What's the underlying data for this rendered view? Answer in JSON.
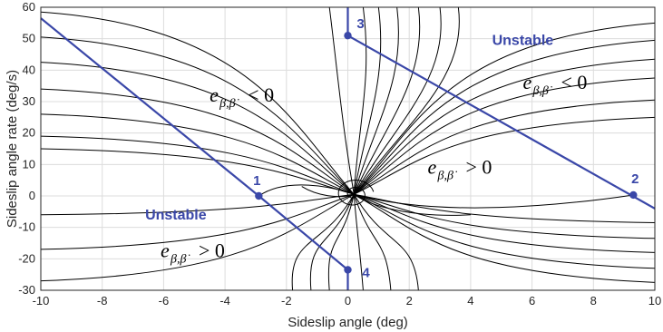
{
  "chart_data": {
    "type": "line",
    "subtype": "phase-portrait",
    "xlabel": "Sideslip angle (deg)",
    "ylabel": "Sideslip angle rate (deg/s)",
    "xlim": [
      -10,
      10
    ],
    "ylim": [
      -30,
      60
    ],
    "xticks": [
      -10,
      -8,
      -6,
      -4,
      -2,
      0,
      2,
      4,
      6,
      8,
      10
    ],
    "yticks": [
      -30,
      -20,
      -10,
      0,
      10,
      20,
      30,
      40,
      50,
      60
    ],
    "grid": true,
    "colors": {
      "boundary": "#3a47a8",
      "trajectory": "#000000",
      "grid": "#dcdcdc"
    },
    "equilibrium": {
      "x": 0.2,
      "y": 0.5
    },
    "stability_boundaries": [
      {
        "name": "boundary-left",
        "points": [
          [
            -10,
            56.5
          ],
          [
            -2.9,
            0
          ],
          [
            0,
            -23.5
          ]
        ]
      },
      {
        "name": "boundary-right",
        "points": [
          [
            0,
            51
          ],
          [
            10,
            -4
          ]
        ]
      },
      {
        "name": "boundary-top-stub",
        "points": [
          [
            0,
            60
          ],
          [
            0,
            51
          ]
        ]
      },
      {
        "name": "boundary-bottom-stub",
        "points": [
          [
            0,
            -23.5
          ],
          [
            0,
            -30
          ]
        ]
      }
    ],
    "key_points": [
      {
        "id": "p1",
        "label": "1",
        "x": -2.9,
        "y": 0
      },
      {
        "id": "p2",
        "label": "2",
        "x": 9.3,
        "y": 0.3
      },
      {
        "id": "p3",
        "label": "3",
        "x": 0,
        "y": 51
      },
      {
        "id": "p4",
        "label": "4",
        "x": 0,
        "y": -23.5
      }
    ],
    "annotations": [
      {
        "id": "unstable-right",
        "text": "Unstable",
        "x": 4.7,
        "y": 48
      },
      {
        "id": "unstable-left",
        "text": "Unstable",
        "x": -6.6,
        "y": -7.5
      }
    ],
    "math_annotations": [
      {
        "id": "e-neg-center",
        "base": "e",
        "sub": "β,β̇",
        "rel": "< 0",
        "x": -4.5,
        "y": 30
      },
      {
        "id": "e-neg-right",
        "base": "e",
        "sub": "β,β̇",
        "rel": "< 0",
        "x": 5.7,
        "y": 34
      },
      {
        "id": "e-pos-center",
        "base": "e",
        "sub": "β,β̇",
        "rel": "> 0",
        "x": 2.6,
        "y": 7
      },
      {
        "id": "e-pos-left",
        "base": "e",
        "sub": "β,β̇",
        "rel": "> 0",
        "x": -6.1,
        "y": -19.5
      }
    ],
    "trajectories_left": [
      {
        "y": 58.5
      },
      {
        "y": 50.5
      },
      {
        "y": 42.5
      },
      {
        "y": 34.0
      },
      {
        "y": 26.0
      },
      {
        "y": 19.0
      },
      {
        "y": 15.0
      },
      {
        "y": -6.0
      },
      {
        "y": -17.0
      },
      {
        "y": -27.0
      }
    ],
    "trajectories_right": [
      {
        "y": 55.0
      },
      {
        "y": 49.5
      },
      {
        "y": 43.5
      },
      {
        "y": 37.5
      },
      {
        "y": 30.5
      },
      {
        "y": 25.0
      },
      {
        "y": -8.5
      },
      {
        "y": -13.5
      },
      {
        "y": -18.0
      },
      {
        "y": -23.0
      },
      {
        "y": -27.5
      }
    ],
    "trajectories_top": [
      {
        "x": -0.6
      },
      {
        "x": 0.5
      },
      {
        "x": 1.0
      },
      {
        "x": 1.6
      },
      {
        "x": 2.3
      },
      {
        "x": 3.0
      },
      {
        "x": 3.6
      }
    ],
    "trajectories_bottom": [
      {
        "x": -1.8
      },
      {
        "x": -1.2
      },
      {
        "x": -0.6
      },
      {
        "x": 0.5
      },
      {
        "x": 1.4
      },
      {
        "x": 2.3
      }
    ],
    "spiral_curves": [
      {
        "from": [
          -2.9,
          0
        ],
        "cp1": [
          -2,
          6
        ],
        "cp2": [
          -0.5,
          3
        ]
      },
      {
        "from": [
          9.3,
          0.3
        ],
        "cp1": [
          7,
          -3
        ],
        "cp2": [
          3,
          -7
        ]
      },
      {
        "from": [
          4,
          -6
        ],
        "cp1": [
          2,
          -7
        ],
        "cp2": [
          0.7,
          -3
        ]
      },
      {
        "from": [
          -1.5,
          3
        ],
        "cp1": [
          -1,
          0
        ],
        "cp2": [
          -0.3,
          -1
        ]
      }
    ]
  }
}
